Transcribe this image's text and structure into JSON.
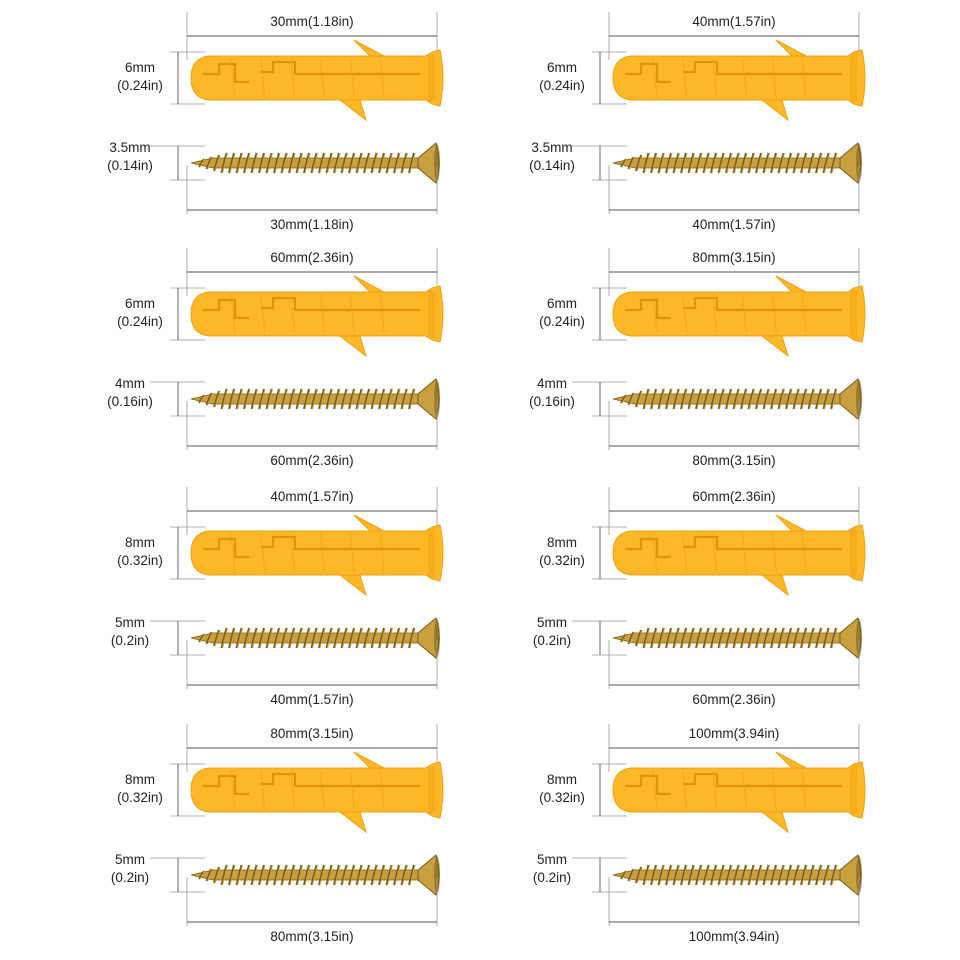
{
  "items": [
    {
      "anchor_length": "30mm(1.18in)",
      "anchor_dia": "6mm",
      "anchor_dia_in": "(0.24in)",
      "screw_dia": "3.5mm",
      "screw_dia_in": "(0.14in)",
      "screw_length": "30mm(1.18in)"
    },
    {
      "anchor_length": "40mm(1.57in)",
      "anchor_dia": "6mm",
      "anchor_dia_in": "(0.24in)",
      "screw_dia": "3.5mm",
      "screw_dia_in": "(0.14in)",
      "screw_length": "40mm(1.57in)"
    },
    {
      "anchor_length": "60mm(2.36in)",
      "anchor_dia": "6mm",
      "anchor_dia_in": "(0.24in)",
      "screw_dia": "4mm",
      "screw_dia_in": "(0.16in)",
      "screw_length": "60mm(2.36in)"
    },
    {
      "anchor_length": "80mm(3.15in)",
      "anchor_dia": "6mm",
      "anchor_dia_in": "(0.24in)",
      "screw_dia": "4mm",
      "screw_dia_in": "(0.16in)",
      "screw_length": "80mm(3.15in)"
    },
    {
      "anchor_length": "40mm(1.57in)",
      "anchor_dia": "8mm",
      "anchor_dia_in": "(0.32in)",
      "screw_dia": "5mm",
      "screw_dia_in": "(0.2in)",
      "screw_length": "40mm(1.57in)"
    },
    {
      "anchor_length": "60mm(2.36in)",
      "anchor_dia": "8mm",
      "anchor_dia_in": "(0.32in)",
      "screw_dia": "5mm",
      "screw_dia_in": "(0.2in)",
      "screw_length": "60mm(2.36in)"
    },
    {
      "anchor_length": "80mm(3.15in)",
      "anchor_dia": "8mm",
      "anchor_dia_in": "(0.32in)",
      "screw_dia": "5mm",
      "screw_dia_in": "(0.2in)",
      "screw_length": "80mm(3.15in)"
    },
    {
      "anchor_length": "100mm(3.94in)",
      "anchor_dia": "8mm",
      "anchor_dia_in": "(0.32in)",
      "screw_dia": "5mm",
      "screw_dia_in": "(0.2in)",
      "screw_length": "100mm(3.94in)"
    }
  ],
  "colors": {
    "anchor": "#fdb827",
    "anchor_shade": "#f0a010",
    "anchor_dark": "#d98a00",
    "screw": "#c9a040",
    "screw_dark": "#7a5a18",
    "line": "#555555"
  }
}
